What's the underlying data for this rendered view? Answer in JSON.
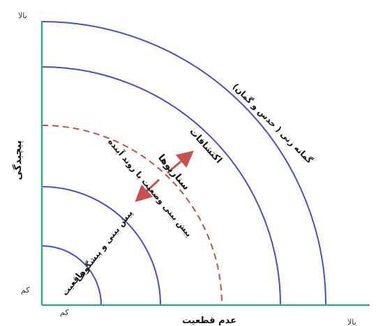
{
  "axes": {
    "y_title": "پیچیدگی",
    "y_top": "بالا",
    "y_bottom": "کم",
    "x_title": "عدم قطعیت",
    "x_left": "کم",
    "x_right": "بالا"
  },
  "zones": {
    "reality": "واقعیت",
    "prediction": "پیش بینی و پیشگویی",
    "forecast_trend": "پیش بینی وضعیت یا روند آینده",
    "scenarios": "سناریوها",
    "exploration": "اکتشافات",
    "speculation": "گمانه زنی ( حدس و گمان)"
  },
  "colors": {
    "axis": "#3aa58a",
    "arc": "#4a4ad8",
    "dashed": "#c0504d",
    "arrow": "#c9504d",
    "text": "#111111"
  }
}
